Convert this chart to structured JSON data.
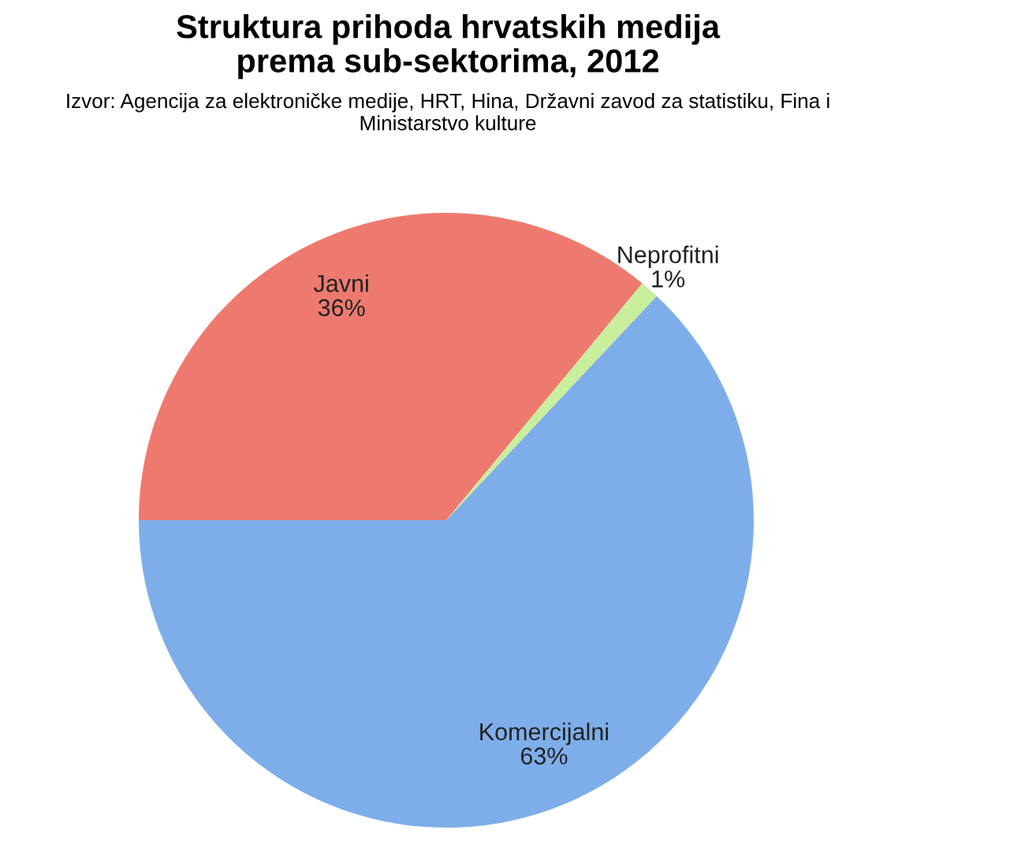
{
  "chart_data": {
    "type": "pie",
    "title": "Struktura prihoda hrvatskih medija\nprema sub-sektorima, 2012",
    "annotations": [
      "Izvor: Agencija za elektroničke medije, HRT, Hina, Državni zavod za statistiku, Fina i\nMinistarstvo kulture"
    ],
    "categories": [
      "Javni",
      "Neprofitni",
      "Komercijalni"
    ],
    "values": [
      36,
      1,
      63
    ],
    "value_labels": [
      "36%",
      "1%",
      "63%"
    ],
    "colors": [
      "#ee7a6f",
      "#c9ee9c",
      "#7eaeea"
    ]
  }
}
